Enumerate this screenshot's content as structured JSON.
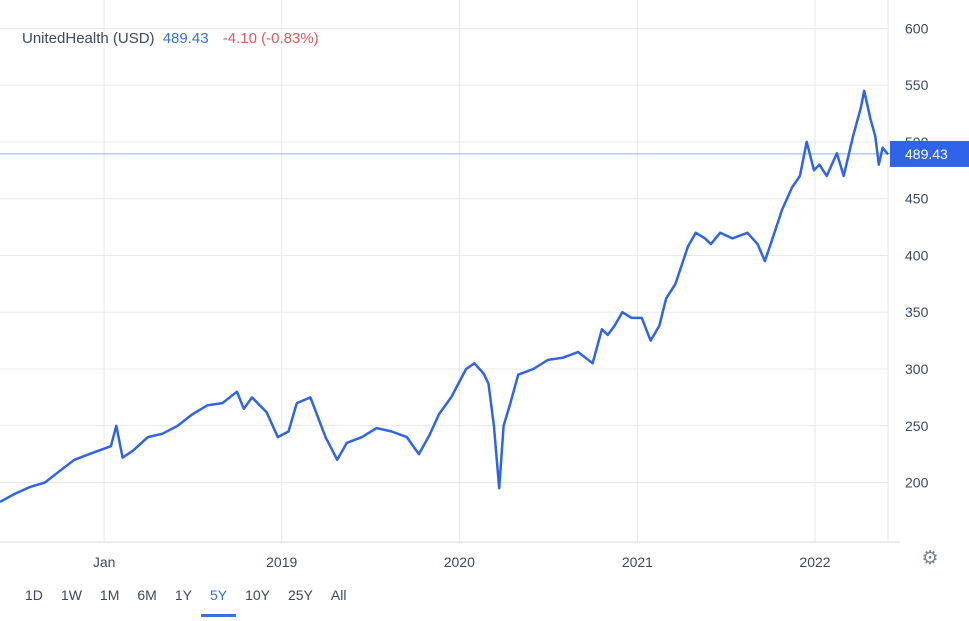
{
  "header": {
    "name": "UnitedHealth (USD)",
    "price": "489.43",
    "change": "-4.10 (-0.83%)"
  },
  "colors": {
    "line": "#2f63e8",
    "grid": "#e6e9ee",
    "price_tag": "#2f63e8",
    "price_line": "#8fb0f2"
  },
  "ranges": {
    "active": "5Y",
    "items": [
      "1D",
      "1W",
      "1M",
      "6M",
      "1Y",
      "5Y",
      "10Y",
      "25Y",
      "All"
    ]
  },
  "settings_icon": "gear-icon",
  "chart_data": {
    "type": "line",
    "ylim": [
      145,
      625
    ],
    "xlim": [
      "2017-06-01",
      "2022-05-31"
    ],
    "y_ticks": [
      200,
      250,
      300,
      350,
      400,
      450,
      500,
      550,
      600
    ],
    "x_ticks": [
      {
        "label": "Jan",
        "date": "2018-01-01"
      },
      {
        "label": "2019",
        "date": "2019-01-01"
      },
      {
        "label": "2020",
        "date": "2020-01-01"
      },
      {
        "label": "2021",
        "date": "2021-01-01"
      },
      {
        "label": "2022",
        "date": "2022-01-01"
      }
    ],
    "last_price": 489.43,
    "last_price_label": "489.43",
    "series": [
      {
        "x": [
          "2017-06-01",
          "2017-07-01",
          "2017-08-01",
          "2017-09-01",
          "2017-10-01",
          "2017-11-01",
          "2017-12-01",
          "2018-01-15",
          "2018-01-26",
          "2018-02-08",
          "2018-03-01",
          "2018-04-01",
          "2018-05-01",
          "2018-06-01",
          "2018-07-01",
          "2018-08-01",
          "2018-09-01",
          "2018-10-01",
          "2018-10-15",
          "2018-11-01",
          "2018-12-01",
          "2018-12-24",
          "2019-01-15",
          "2019-02-01",
          "2019-03-01",
          "2019-04-01",
          "2019-04-25",
          "2019-05-15",
          "2019-06-15",
          "2019-07-15",
          "2019-08-15",
          "2019-09-15",
          "2019-10-10",
          "2019-11-01",
          "2019-11-20",
          "2019-12-15",
          "2020-01-15",
          "2020-02-01",
          "2020-02-20",
          "2020-03-01",
          "2020-03-12",
          "2020-03-23",
          "2020-04-01",
          "2020-04-15",
          "2020-05-01",
          "2020-06-01",
          "2020-07-01",
          "2020-08-01",
          "2020-09-01",
          "2020-10-01",
          "2020-10-20",
          "2020-11-01",
          "2020-11-15",
          "2020-12-01",
          "2020-12-20",
          "2021-01-10",
          "2021-01-28",
          "2021-02-15",
          "2021-03-01",
          "2021-03-20",
          "2021-04-15",
          "2021-05-01",
          "2021-05-20",
          "2021-06-01",
          "2021-06-20",
          "2021-07-15",
          "2021-08-15",
          "2021-09-05",
          "2021-09-20",
          "2021-10-08",
          "2021-10-25",
          "2021-11-15",
          "2021-12-01",
          "2021-12-15",
          "2021-12-30",
          "2022-01-10",
          "2022-01-25",
          "2022-02-15",
          "2022-03-01",
          "2022-03-20",
          "2022-04-05",
          "2022-04-12",
          "2022-04-25",
          "2022-05-05",
          "2022-05-12",
          "2022-05-20",
          "2022-05-31"
        ],
        "y": [
          183,
          190,
          196,
          200,
          210,
          220,
          225,
          232,
          250,
          222,
          228,
          240,
          243,
          250,
          260,
          268,
          270,
          280,
          265,
          275,
          262,
          240,
          245,
          270,
          275,
          240,
          220,
          235,
          240,
          248,
          245,
          240,
          225,
          242,
          260,
          275,
          300,
          305,
          296,
          287,
          250,
          195,
          250,
          270,
          295,
          300,
          308,
          310,
          315,
          305,
          335,
          330,
          338,
          350,
          345,
          345,
          325,
          338,
          362,
          375,
          408,
          420,
          415,
          410,
          420,
          415,
          420,
          410,
          395,
          418,
          440,
          460,
          470,
          500,
          475,
          480,
          470,
          490,
          470,
          505,
          530,
          545,
          520,
          505,
          480,
          495,
          489
        ]
      }
    ]
  }
}
